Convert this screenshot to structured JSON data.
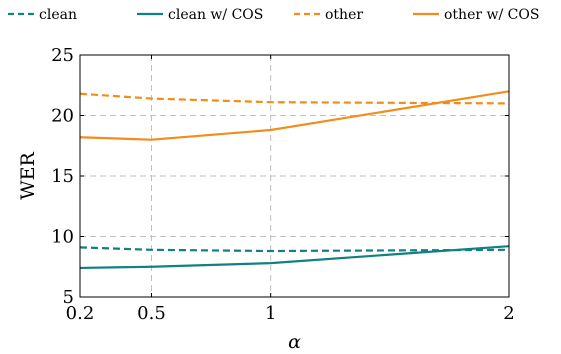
{
  "chart_data": {
    "type": "line",
    "xlabel": "α",
    "ylabel": "WER",
    "xlim": [
      0.2,
      2
    ],
    "ylim": [
      5,
      25
    ],
    "xticks": [
      0.2,
      0.5,
      1,
      2
    ],
    "xtick_labels": [
      "0.2",
      "0.5",
      "1",
      "2"
    ],
    "yticks": [
      5,
      10,
      15,
      20,
      25
    ],
    "ytick_labels": [
      "5",
      "10",
      "15",
      "20",
      "25"
    ],
    "grid": true,
    "legend_position": "top",
    "series": [
      {
        "name": "clean",
        "color": "#118080",
        "dash": "dashed",
        "x": [
          0.2,
          0.5,
          1,
          2
        ],
        "y": [
          9.1,
          8.9,
          8.8,
          8.9
        ]
      },
      {
        "name": "clean w/ COS",
        "color": "#118080",
        "dash": "solid",
        "x": [
          0.2,
          0.5,
          1,
          2
        ],
        "y": [
          7.4,
          7.5,
          7.8,
          9.2
        ]
      },
      {
        "name": "other",
        "color": "#f28c1a",
        "dash": "dashed",
        "x": [
          0.2,
          0.5,
          1,
          2
        ],
        "y": [
          21.8,
          21.4,
          21.1,
          21.0
        ]
      },
      {
        "name": "other w/ COS",
        "color": "#f28c1a",
        "dash": "solid",
        "x": [
          0.2,
          0.5,
          1,
          2
        ],
        "y": [
          18.2,
          18.0,
          18.8,
          22.0
        ]
      }
    ]
  }
}
